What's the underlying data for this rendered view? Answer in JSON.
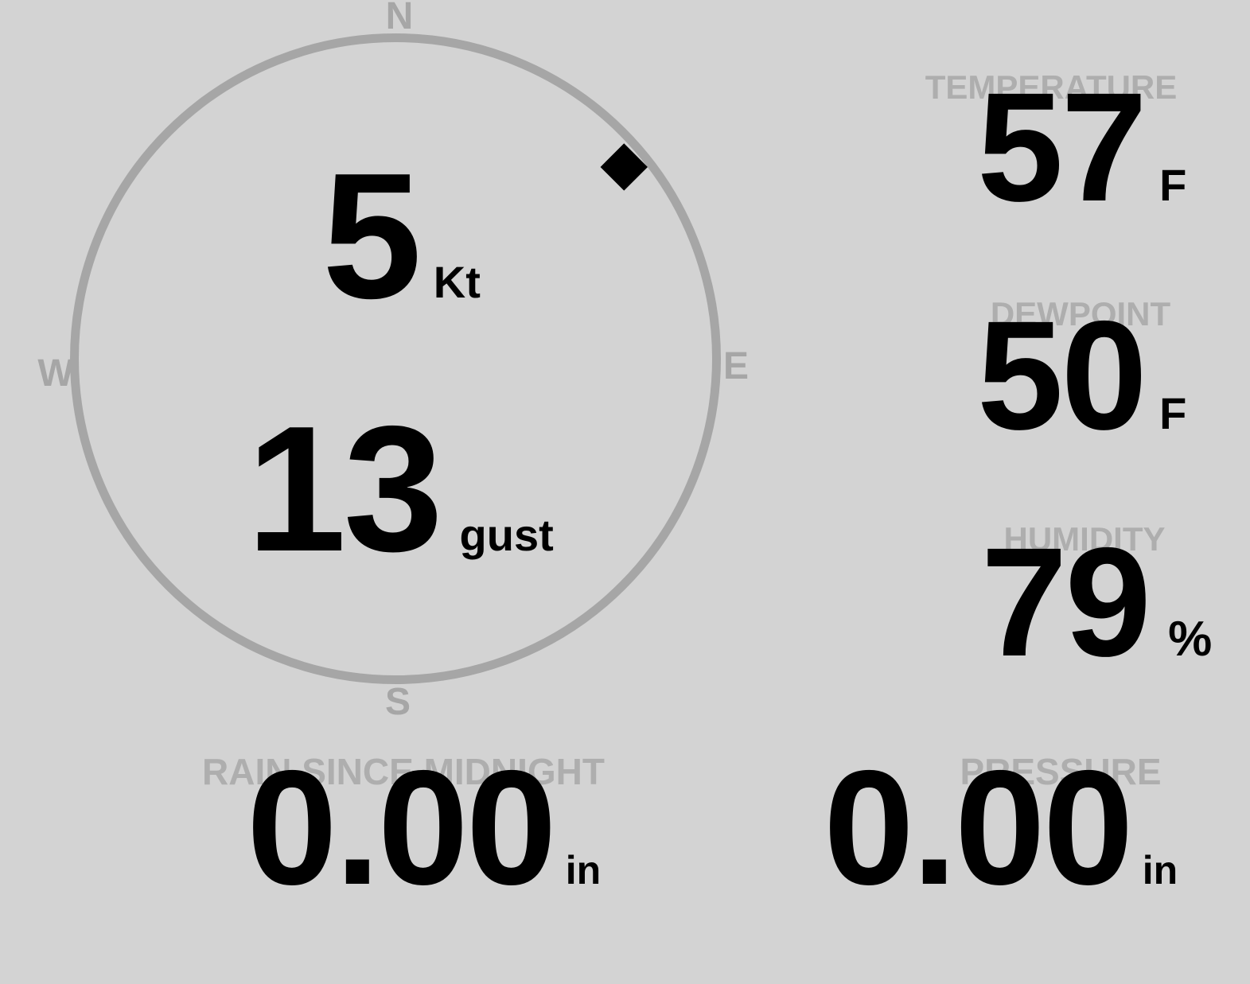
{
  "colors": {
    "background": "#d3d3d3",
    "label_gray": "#aeaeae",
    "ring_gray": "#a6a6a6",
    "value_black": "#000000"
  },
  "wind_compass": {
    "cardinals": {
      "north": "N",
      "east": "E",
      "south": "S",
      "west": "W"
    },
    "speed": {
      "value": "5",
      "unit": "Kt"
    },
    "gust": {
      "value": "13",
      "unit": "gust"
    },
    "direction_degrees": 50,
    "marker_shape": "black-diamond"
  },
  "metrics": {
    "temperature": {
      "label": "TEMPERATURE",
      "value": "57",
      "unit": "F"
    },
    "dewpoint": {
      "label": "DEWPOINT",
      "value": "50",
      "unit": "F"
    },
    "humidity": {
      "label": "HUMIDITY",
      "value": "79",
      "unit": "%"
    },
    "rain_since_midnight": {
      "label": "RAIN SINCE MIDNIGHT",
      "value": "0.00",
      "unit": "in"
    },
    "pressure": {
      "label": "PRESSURE",
      "value": "0.00",
      "unit": "in"
    }
  }
}
